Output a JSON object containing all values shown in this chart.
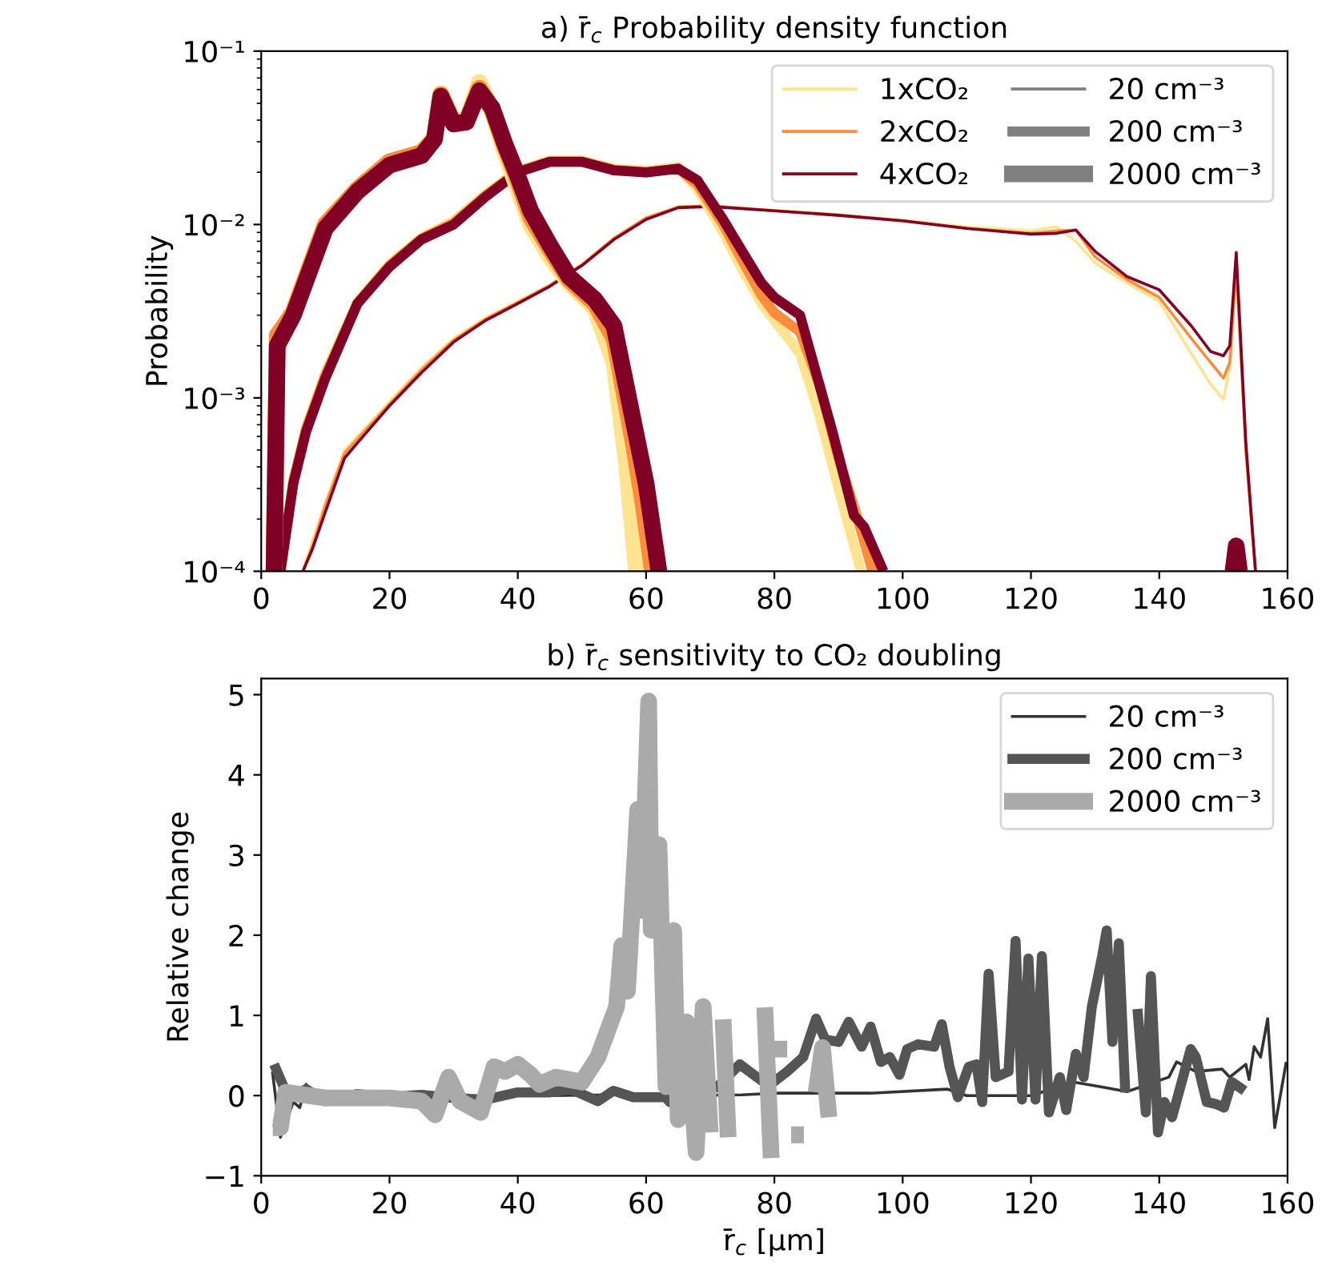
{
  "chart_data": [
    {
      "type": "line",
      "title": "a) r̄$_{c}$ Probability density function",
      "ylabel": "Probability",
      "log": true,
      "legend": "top right",
      "grid": false,
      "xlim": [
        0,
        160
      ],
      "xticks": [
        0,
        20,
        40,
        60,
        80,
        100,
        120,
        140,
        160
      ],
      "ylim": [
        0.0001,
        0.1
      ],
      "yticks": [
        {
          "value": 0.0001,
          "label": "10⁻⁴"
        },
        {
          "value": 0.001,
          "label": "10⁻³"
        },
        {
          "value": 0.01,
          "label": "10⁻²"
        },
        {
          "value": 0.1,
          "label": "10⁻¹"
        }
      ],
      "size_legend": [
        "20 cm⁻³",
        "200 cm⁻³",
        "2000 cm⁻³"
      ],
      "series": [
        {
          "name": "1xCO₂",
          "color": "#fee391",
          "x": [
            6.5,
            8,
            10,
            13,
            15,
            20,
            25,
            30,
            35,
            40,
            45,
            50,
            55,
            60,
            65,
            70,
            80,
            90,
            100,
            110,
            120,
            124,
            127,
            130,
            135,
            140,
            145,
            148,
            150,
            151,
            152,
            153.5,
            155
          ],
          "values": [
            0.0001,
            0.00015,
            0.00025,
            0.0005,
            0.0006,
            0.00095,
            0.0015,
            0.0022,
            0.0029,
            0.0036,
            0.0045,
            0.0059,
            0.0084,
            0.011,
            0.0127,
            0.0128,
            0.0121,
            0.0114,
            0.0106,
            0.0097,
            0.0092,
            0.0097,
            0.008,
            0.006,
            0.0046,
            0.0036,
            0.0018,
            0.0012,
            0.00098,
            0.0015,
            0.0055,
            0.0005,
            0.0001
          ]
        },
        {
          "name": "2xCO₂",
          "color": "#fd8d3c",
          "x": [
            6.5,
            8,
            10,
            13,
            15,
            20,
            25,
            30,
            35,
            40,
            45,
            50,
            55,
            60,
            65,
            70,
            80,
            90,
            100,
            110,
            120,
            124,
            127,
            130,
            135,
            140,
            145,
            148,
            150,
            151,
            152,
            153.5,
            155
          ],
          "values": [
            0.0001,
            0.00014,
            0.00024,
            0.00048,
            0.00058,
            0.00092,
            0.00145,
            0.00215,
            0.00285,
            0.00355,
            0.00445,
            0.00585,
            0.0083,
            0.0109,
            0.0126,
            0.0128,
            0.012,
            0.0113,
            0.0105,
            0.0095,
            0.0089,
            0.0092,
            0.0093,
            0.0065,
            0.0048,
            0.0038,
            0.0022,
            0.0016,
            0.0013,
            0.0016,
            0.006,
            0.0005,
            0.0001
          ]
        },
        {
          "name": "4xCO₂",
          "color": "#800026",
          "x": [
            6.5,
            8,
            10,
            13,
            15,
            20,
            25,
            30,
            35,
            40,
            45,
            50,
            55,
            60,
            65,
            70,
            80,
            90,
            100,
            110,
            120,
            124,
            127,
            130,
            135,
            140,
            145,
            148,
            150,
            151,
            152,
            153.5,
            155
          ],
          "values": [
            0.0001,
            0.000135,
            0.00022,
            0.00045,
            0.00055,
            0.0009,
            0.0014,
            0.0021,
            0.0028,
            0.0035,
            0.0044,
            0.0058,
            0.0082,
            0.0107,
            0.0125,
            0.0127,
            0.012,
            0.0113,
            0.0105,
            0.0095,
            0.0088,
            0.0089,
            0.0093,
            0.007,
            0.005,
            0.0042,
            0.0026,
            0.00185,
            0.00175,
            0.002,
            0.0069,
            0.00055,
            0.0001
          ]
        },
        {
          "color": "#fee391",
          "x": [
            3,
            5,
            7,
            10,
            15,
            20,
            25,
            30,
            35,
            40,
            45,
            50,
            55,
            60,
            65,
            68,
            72,
            75,
            78,
            80,
            84,
            87,
            90,
            93.5
          ],
          "values": [
            0.0001,
            0.00034,
            0.00068,
            0.0014,
            0.0036,
            0.0059,
            0.0084,
            0.0105,
            0.015,
            0.0205,
            0.0235,
            0.0235,
            0.021,
            0.0205,
            0.0215,
            0.016,
            0.009,
            0.0055,
            0.0035,
            0.0028,
            0.0018,
            0.0008,
            0.0003,
            0.0001
          ]
        },
        {
          "color": "#fd8d3c",
          "x": [
            3,
            5,
            7,
            10,
            15,
            20,
            25,
            30,
            35,
            40,
            45,
            50,
            55,
            60,
            65,
            68,
            72,
            75,
            78,
            80,
            84,
            87,
            90,
            93,
            95.3
          ],
          "values": [
            0.0001,
            0.00033,
            0.00066,
            0.00135,
            0.0035,
            0.0058,
            0.0083,
            0.0102,
            0.0147,
            0.0202,
            0.023,
            0.023,
            0.0207,
            0.02,
            0.021,
            0.017,
            0.01,
            0.0062,
            0.0039,
            0.0031,
            0.0024,
            0.0012,
            0.00045,
            0.0002,
            0.0001
          ]
        },
        {
          "color": "#800026",
          "x": [
            3,
            5,
            7,
            10,
            15,
            20,
            25,
            30,
            35,
            40,
            45,
            50,
            55,
            60,
            65,
            68,
            72,
            75,
            78,
            80,
            84,
            89,
            92.4,
            94,
            97
          ],
          "values": [
            0.0001,
            0.00032,
            0.00064,
            0.0013,
            0.0035,
            0.0057,
            0.0082,
            0.01,
            0.0145,
            0.02,
            0.023,
            0.023,
            0.0205,
            0.02,
            0.021,
            0.018,
            0.0107,
            0.007,
            0.0046,
            0.0038,
            0.003,
            0.00065,
            0.00021,
            0.00018,
            0.0001
          ]
        },
        {
          "color": "#fee391",
          "x": [
            2,
            2.5,
            5,
            10,
            15,
            20,
            25,
            27,
            28,
            30,
            32,
            34,
            36,
            38,
            40,
            42,
            45,
            48,
            52,
            55,
            57,
            58.5
          ],
          "values": [
            0.0001,
            0.0022,
            0.0032,
            0.01,
            0.016,
            0.023,
            0.026,
            0.032,
            0.057,
            0.039,
            0.04,
            0.066,
            0.045,
            0.026,
            0.016,
            0.01,
            0.0065,
            0.0046,
            0.0033,
            0.0016,
            0.0004,
            0.0001
          ]
        },
        {
          "color": "#fd8d3c",
          "x": [
            2,
            2.5,
            5,
            10,
            15,
            20,
            25,
            27,
            28,
            30,
            32,
            34,
            36,
            38,
            40,
            42,
            45,
            48,
            52,
            55,
            58,
            59.5,
            61
          ],
          "values": [
            0.0001,
            0.0023,
            0.0031,
            0.01,
            0.016,
            0.023,
            0.026,
            0.031,
            0.056,
            0.038,
            0.039,
            0.061,
            0.046,
            0.028,
            0.018,
            0.011,
            0.0072,
            0.0048,
            0.0035,
            0.0022,
            0.00055,
            0.00025,
            0.0001
          ]
        },
        {
          "color": "#800026",
          "x": [
            2,
            2.5,
            5,
            10,
            15,
            20,
            25,
            27,
            28,
            30,
            32,
            34,
            36,
            38,
            40,
            42,
            45,
            48,
            52,
            55,
            58,
            60,
            62,
            100,
            151.5,
            152,
            152.5
          ],
          "values": [
            0.0001,
            0.002,
            0.003,
            0.0095,
            0.0155,
            0.022,
            0.025,
            0.031,
            0.055,
            0.038,
            0.039,
            0.059,
            0.047,
            0.029,
            0.019,
            0.012,
            0.0076,
            0.005,
            0.0037,
            0.0026,
            0.00074,
            0.00032,
            0.0001,
            null,
            0.0001,
            0.00014,
            0.0001
          ]
        }
      ]
    },
    {
      "type": "line",
      "title": "b) r̄$_{c}$ sensitivity to CO₂ doubling",
      "xlabel": "r̄$_{c}$ [μm]",
      "ylabel": "Relative change",
      "legend": "top right",
      "grid": false,
      "xlim": [
        0,
        160
      ],
      "xticks": [
        0,
        20,
        40,
        60,
        80,
        100,
        120,
        140,
        160
      ],
      "ylim": [
        -1,
        5.2
      ],
      "yticks": [
        {
          "value": -1,
          "label": "−1"
        },
        0,
        1,
        2,
        3,
        4,
        5
      ],
      "series": [
        {
          "name": "20 cm⁻³",
          "color": "#333333",
          "x": [
            1.75,
            3,
            5,
            6,
            7,
            8,
            15,
            25,
            35,
            45,
            55,
            65,
            75,
            80,
            95,
            107,
            110,
            120,
            126.6,
            131.6,
            135,
            141.5,
            142.7,
            145.7,
            149.8,
            151,
            153.5,
            154,
            154.8,
            155.8,
            156.9,
            158,
            159.8
          ],
          "values": [
            0.3,
            -0.52,
            -0.08,
            -0.15,
            0.14,
            0,
            0.02,
            -0.02,
            null,
            0.0,
            0.01,
            0.0,
            0.01,
            0.03,
            0.03,
            0.08,
            0.0,
            0.0,
            0.17,
            0.1,
            0.05,
            0.23,
            0.42,
            0.3,
            0.33,
            0.23,
            0.39,
            0.2,
            0.61,
            0.48,
            0.96,
            -0.4,
            0.42
          ]
        },
        {
          "name": "200 cm⁻³",
          "color": "#555555",
          "x": [
            2,
            4.2,
            7,
            10,
            15,
            20,
            25,
            30,
            35,
            40,
            45,
            48.3,
            52.5,
            54.9,
            58,
            63,
            63.7,
            68.2,
            71,
            74.6,
            78.3,
            79.9,
            82,
            84.5,
            86.5,
            87.9,
            90,
            91.6,
            93.6,
            95,
            96.6,
            98,
            99.5,
            100.7,
            102.4,
            104.9,
            106.1,
            107.3,
            108.6,
            110.3,
            111.5,
            112.4,
            113.4,
            114.5,
            116.5,
            117.6,
            118.6,
            119.6,
            120.7,
            121.7,
            122.8,
            124.5,
            125.5,
            127,
            128.2,
            129.5,
            131.1,
            131.8,
            132.7,
            133.7,
            134.7,
            136,
            136.6,
            137.9,
            138.7,
            139.8,
            140.8,
            142,
            144.9,
            145.7,
            147.4,
            149,
            150.1,
            151.3,
            153.3
          ],
          "values": [
            0.39,
            -0.02,
            0.08,
            -0.07,
            0.02,
            -0.02,
            0.01,
            -0.03,
            -0.05,
            0.04,
            0.04,
            0.08,
            -0.07,
            0.06,
            -0.02,
            -0.02,
            -0.08,
            0.14,
            0.1,
            0.39,
            0.17,
            0.17,
            0.3,
            0.48,
            0.96,
            0.7,
            0.67,
            0.92,
            0.61,
            0.86,
            0.42,
            0.48,
            0.26,
            0.58,
            0.64,
            0.61,
            0.89,
            0.36,
            -0.02,
            0.36,
            0.39,
            -0.08,
            1.52,
            0.23,
            0.3,
            1.93,
            -0.05,
            1.71,
            -0.05,
            1.74,
            -0.21,
            0.23,
            -0.18,
            0.52,
            0.23,
            1.11,
            1.74,
            2.06,
            0.67,
            1.9,
            0.04,
            null,
            1.08,
            -0.21,
            1.49,
            -0.46,
            -0.08,
            -0.27,
            0.58,
            0.48,
            -0.08,
            -0.11,
            -0.15,
            0.17,
            0.06
          ]
        },
        {
          "name": "2000 cm⁻³",
          "color": "#aaaaaa",
          "x": [
            1.8,
            3,
            3.8,
            10,
            20,
            25,
            27.1,
            29.2,
            31,
            34.2,
            36.3,
            38,
            40,
            42,
            43.4,
            46,
            48,
            50,
            52.5,
            54.1,
            55.4,
            56.2,
            57.1,
            58.7,
            59.3,
            60.4,
            60.8,
            62,
            63.1,
            64.3,
            65,
            66.3,
            67.8,
            68.9,
            70,
            71,
            72,
            72.8,
            74,
            78.5,
            79.5,
            79.8,
            80,
            82,
            82.3,
            82.6,
            84.6,
            85,
            86.5,
            87.5,
            88.5
          ],
          "values": [
            -0.4,
            -0.4,
            0.04,
            -0.03,
            -0.03,
            -0.07,
            -0.24,
            0.23,
            -0.07,
            -0.21,
            0.36,
            0.3,
            0.39,
            0.26,
            0.14,
            0.23,
            0.2,
            0.17,
            0.48,
            0.83,
            1.11,
            1.87,
            1.3,
            3.57,
            2.31,
            4.92,
            2.06,
            3.13,
            0.11,
            2.06,
            -0.3,
            0.92,
            -0.71,
            1.11,
            -0.46,
            null,
            0.95,
            -0.52,
            null,
            1.1,
            -0.78,
            null,
            0.58,
            0.58,
            null,
            -0.49,
            -0.49,
            null,
            0.04,
            0.6,
            -0.27
          ]
        }
      ]
    }
  ]
}
